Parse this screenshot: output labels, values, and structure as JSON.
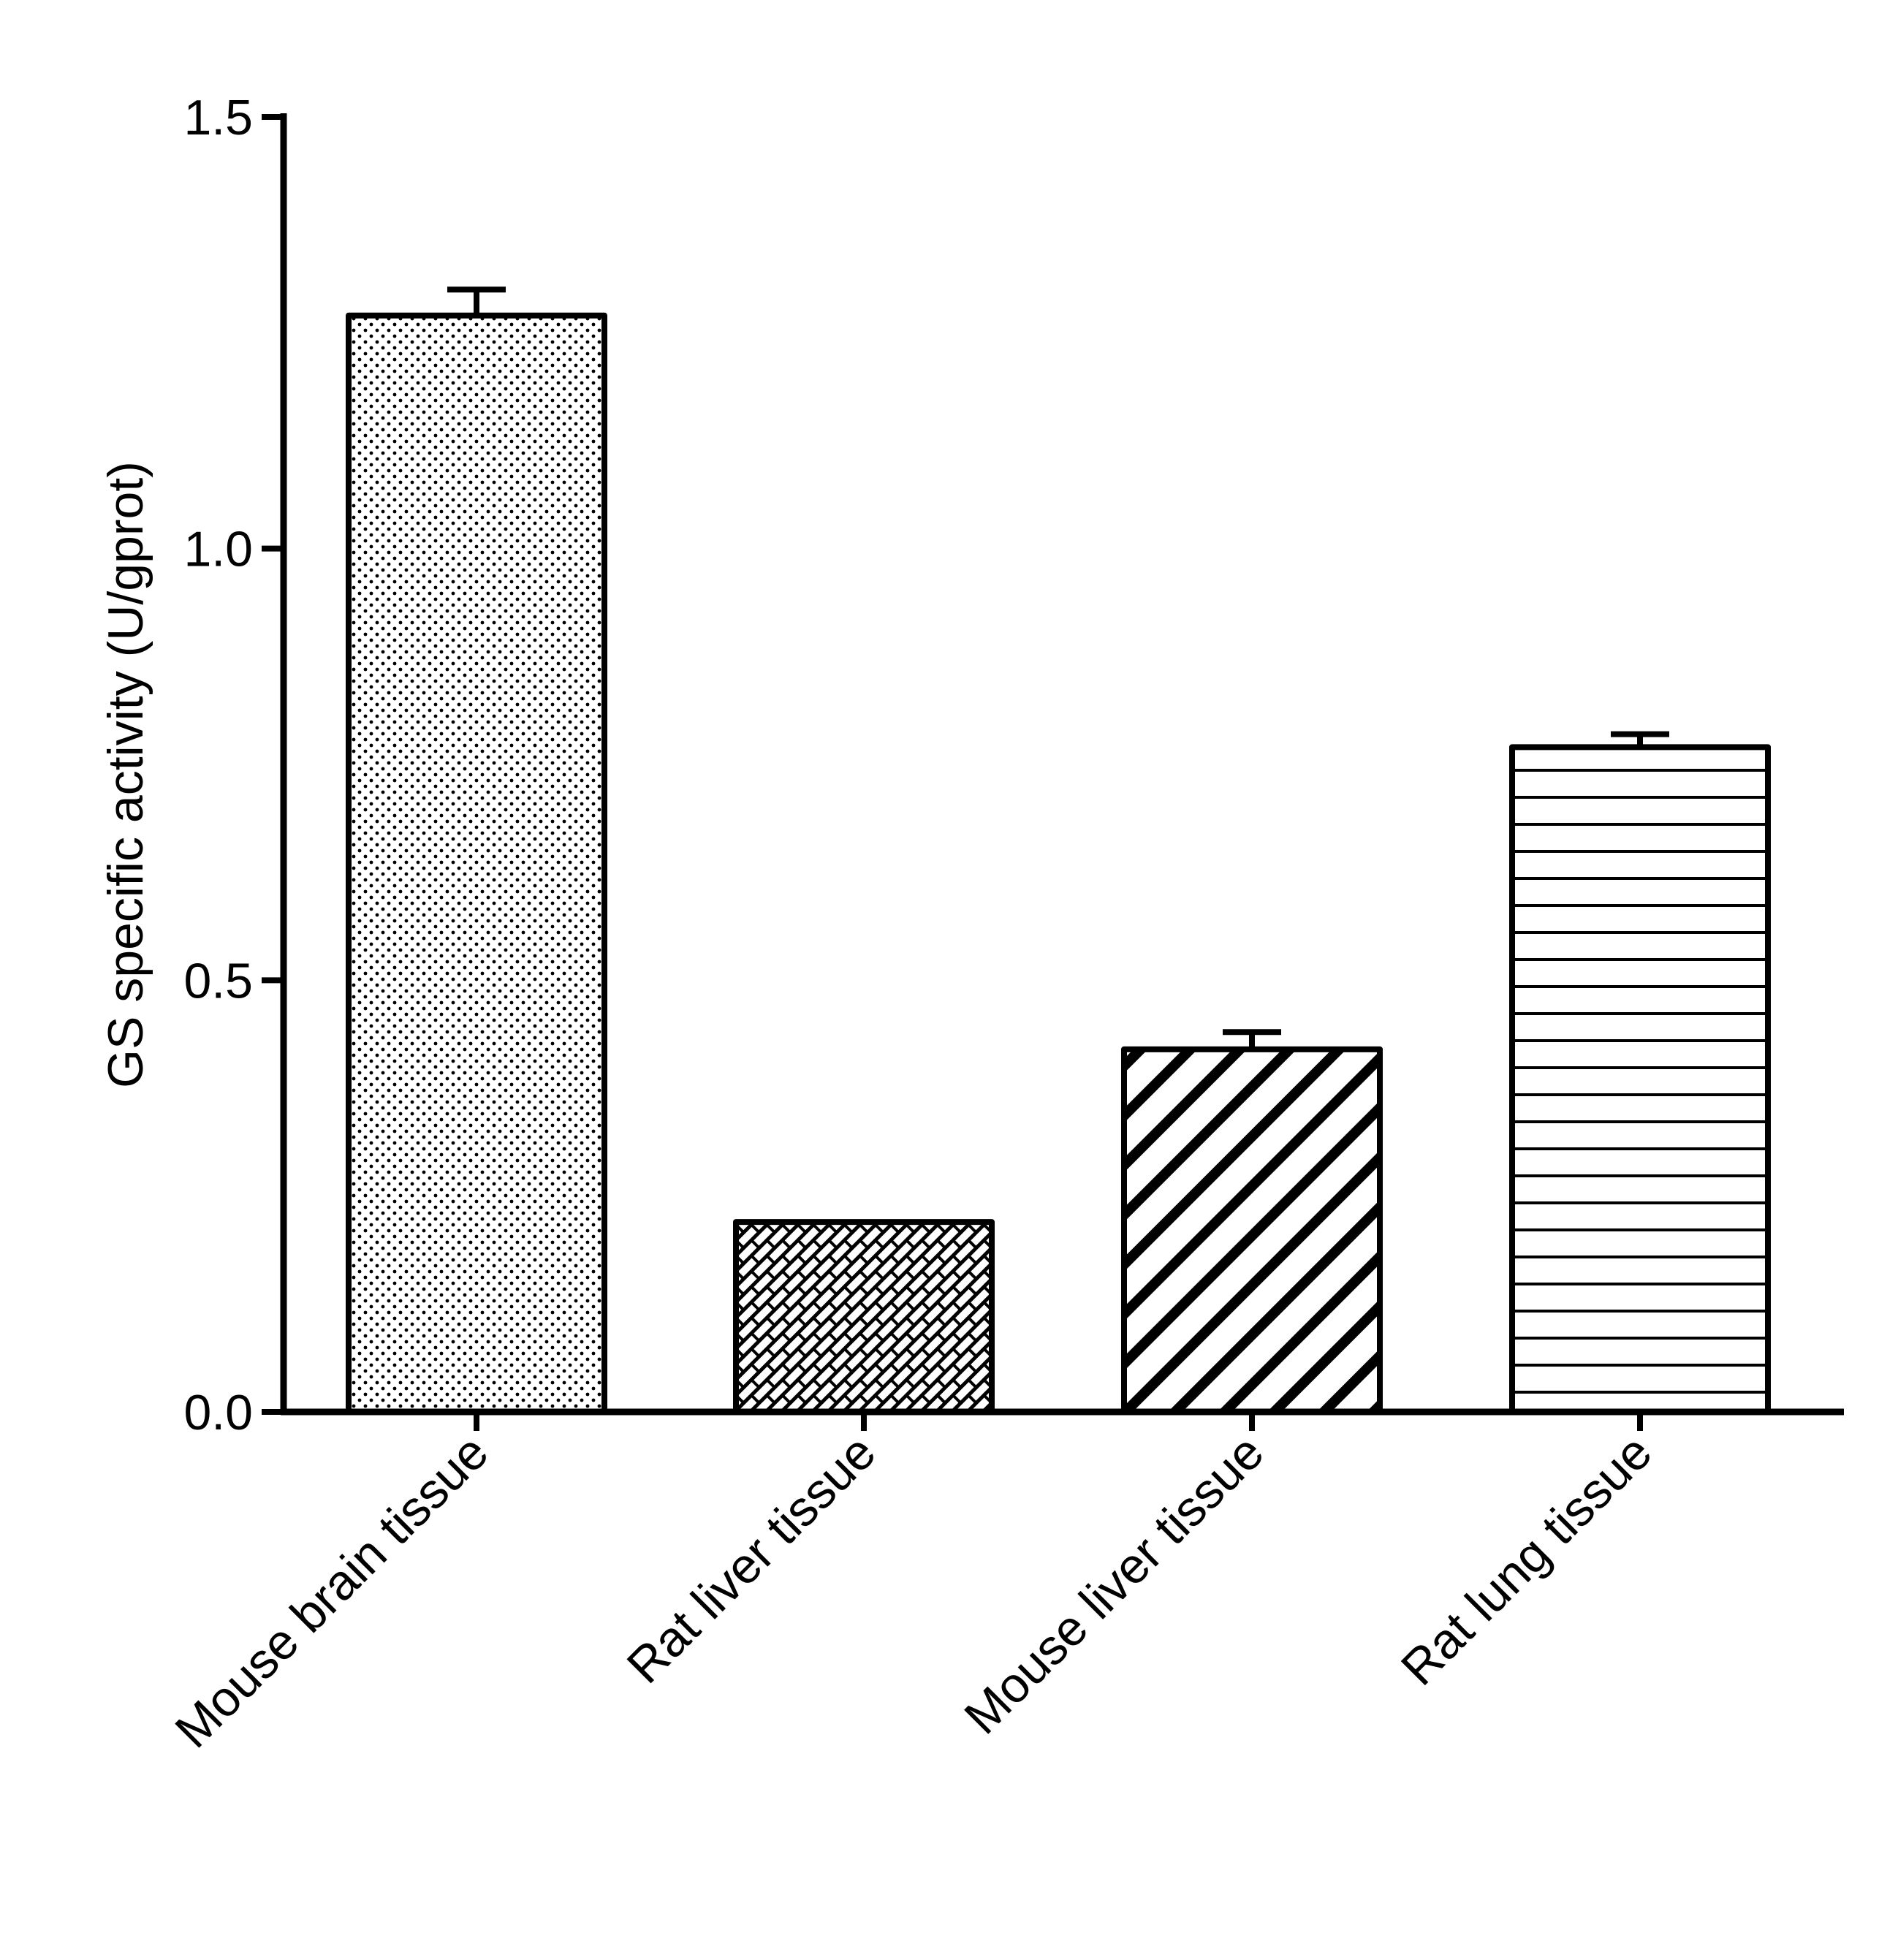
{
  "chart_data": {
    "type": "bar",
    "title": "",
    "xlabel": "",
    "ylabel": "GS specific activity  (U/gprot)",
    "ylim": [
      0,
      1.5
    ],
    "yticks": [
      0.0,
      0.5,
      1.0,
      1.5
    ],
    "ytick_labels": [
      "0.0",
      "0.5",
      "1.0",
      "1.5"
    ],
    "grid": false,
    "legend": "none",
    "categories": [
      "Mouse brain tissue",
      "Rat liver tissue",
      "Mouse liver tissue",
      "Rat lung tissue"
    ],
    "values": [
      1.27,
      0.22,
      0.42,
      0.77
    ],
    "errors": [
      0.03,
      0.0,
      0.02,
      0.015
    ],
    "fill_patterns": [
      "dots",
      "crosshatch",
      "diagonal-thick",
      "horizontal-lines"
    ],
    "colors": {
      "stroke": "#000000",
      "fill": "#ffffff"
    }
  }
}
